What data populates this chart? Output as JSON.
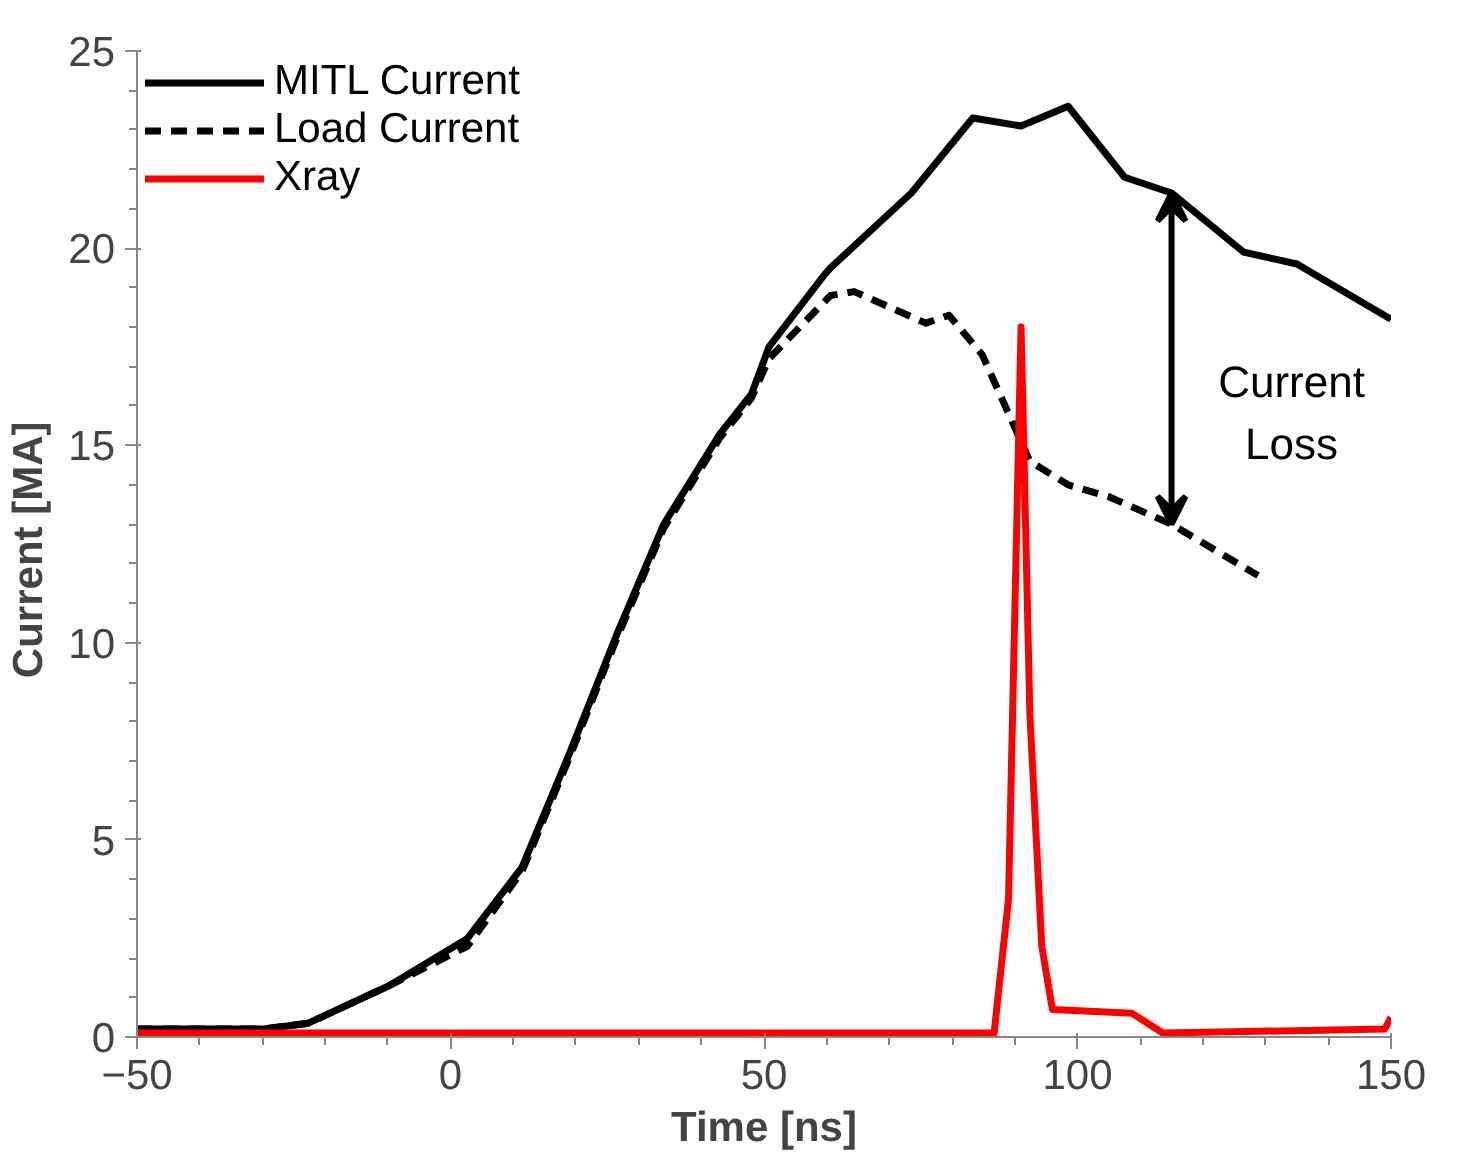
{
  "chart_data": {
    "type": "line",
    "xlabel": "Time [ns]",
    "ylabel": "Current  [MA]",
    "xlim": [
      -50,
      150
    ],
    "ylim": [
      0,
      25
    ],
    "xticks": [
      -50,
      0,
      50,
      100,
      150
    ],
    "yticks": [
      0,
      5,
      10,
      15,
      20,
      25
    ],
    "grid": false,
    "legend": "top left",
    "annotations": [
      "Current Loss"
    ],
    "series": [
      {
        "name": "MITL Current",
        "color": "#000000",
        "line_style": "solid",
        "x": [
          -50,
          -30,
          -22.7,
          -9.8,
          2.7,
          11.4,
          19,
          26.5,
          34,
          43,
          48,
          50.8,
          59.5,
          60.6,
          73.5,
          83.3,
          91,
          98.5,
          107.5,
          115,
          126.5,
          135,
          150
        ],
        "values": [
          0.2,
          0.2,
          0.35,
          1.3,
          2.5,
          4.3,
          7.2,
          10.2,
          13,
          15.3,
          16.3,
          17.5,
          19.3,
          19.5,
          21.4,
          23.3,
          23.1,
          23.6,
          21.8,
          21.4,
          19.9,
          19.6,
          18.2
        ]
      },
      {
        "name": "Load Current",
        "color": "#000000",
        "line_style": "dashed",
        "x": [
          -50,
          -30,
          -22.7,
          -9.8,
          2.7,
          11.4,
          19,
          26.5,
          34,
          43,
          48,
          50.8,
          60.6,
          64.4,
          75.8,
          79.5,
          84.8,
          92.4,
          98.5,
          105,
          115,
          128.8
        ],
        "values": [
          0.2,
          0.2,
          0.35,
          1.3,
          2.3,
          4.2,
          7.1,
          10.1,
          12.9,
          15.2,
          16.2,
          17.2,
          18.8,
          18.9,
          18.1,
          18.3,
          17.3,
          14.6,
          14.0,
          13.7,
          13.0,
          11.7
        ]
      },
      {
        "name": "Xray",
        "color": "#ff0000",
        "line_style": "solid",
        "x": [
          -50,
          86.7,
          89,
          91,
          92.4,
          94.3,
          96,
          108.7,
          113.6,
          149,
          150
        ],
        "values": [
          0.1,
          0.1,
          3.5,
          18.0,
          8.2,
          2.3,
          0.7,
          0.6,
          0.1,
          0.2,
          0.5
        ]
      }
    ]
  }
}
